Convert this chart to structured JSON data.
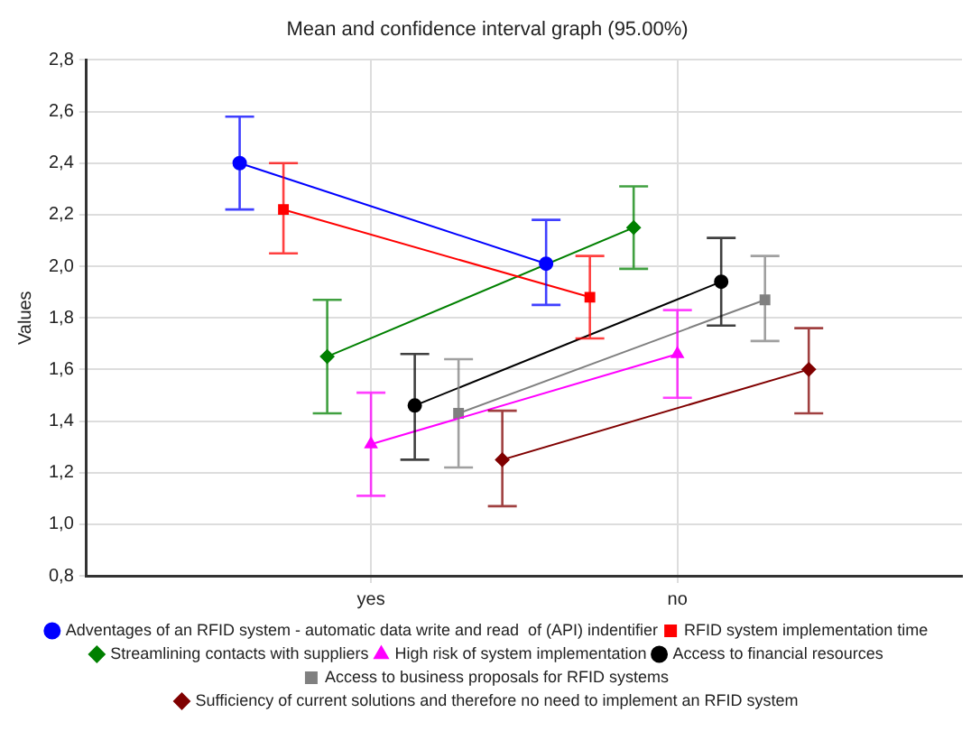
{
  "chart_data": {
    "type": "line",
    "title": "Mean and confidence interval graph (95.00%)",
    "ylabel": "Values",
    "categories": [
      null,
      null,
      null,
      null,
      null,
      null,
      "yes",
      null,
      null,
      null,
      null,
      null,
      null,
      "no",
      null,
      null,
      null,
      null,
      null,
      null
    ],
    "ylim": [
      0.8,
      2.8
    ],
    "yticks": [
      {
        "value": 0.8,
        "label": "0,8"
      },
      {
        "value": 1.0,
        "label": "1,0"
      },
      {
        "value": 1.2,
        "label": "1,2"
      },
      {
        "value": 1.4,
        "label": "1,4"
      },
      {
        "value": 1.6,
        "label": "1,6"
      },
      {
        "value": 1.8,
        "label": "1,8"
      },
      {
        "value": 2.0,
        "label": "2,0"
      },
      {
        "value": 2.2,
        "label": "2,2"
      },
      {
        "value": 2.4,
        "label": "2,4"
      },
      {
        "value": 2.6,
        "label": "2,6"
      },
      {
        "value": 2.8,
        "label": "2,8"
      }
    ],
    "grid": true,
    "legend": "bottom",
    "line_style": "solid",
    "series": [
      {
        "name": "Adventages of an RFID system - automatic data write and read  of (API) indentifier",
        "color": "#0000ff",
        "marker": "circle",
        "values": [
          null,
          null,
          null,
          2.4,
          null,
          null,
          null,
          null,
          null,
          null,
          2.01,
          null,
          null,
          null,
          null,
          null,
          null,
          null,
          null,
          null
        ],
        "errors": [
          null,
          null,
          null,
          [
            2.22,
            2.58
          ],
          null,
          null,
          null,
          null,
          null,
          null,
          [
            1.85,
            2.18
          ],
          null,
          null,
          null,
          null,
          null,
          null,
          null,
          null,
          null
        ]
      },
      {
        "name": "RFID system implementation time",
        "color": "#ff0000",
        "marker": "square",
        "values": [
          null,
          null,
          null,
          null,
          2.22,
          null,
          null,
          null,
          null,
          null,
          null,
          1.88,
          null,
          null,
          null,
          null,
          null,
          null,
          null,
          null
        ],
        "errors": [
          null,
          null,
          null,
          null,
          [
            2.05,
            2.4
          ],
          null,
          null,
          null,
          null,
          null,
          null,
          [
            1.72,
            2.04
          ],
          null,
          null,
          null,
          null,
          null,
          null,
          null,
          null
        ]
      },
      {
        "name": "Streamlining contacts with suppliers",
        "color": "#008000",
        "marker": "diamond",
        "values": [
          null,
          null,
          null,
          null,
          null,
          1.65,
          null,
          null,
          null,
          null,
          null,
          null,
          2.15,
          null,
          null,
          null,
          null,
          null,
          null,
          null
        ],
        "errors": [
          null,
          null,
          null,
          null,
          null,
          [
            1.43,
            1.87
          ],
          null,
          null,
          null,
          null,
          null,
          null,
          [
            1.99,
            2.31
          ],
          null,
          null,
          null,
          null,
          null,
          null,
          null
        ]
      },
      {
        "name": "High risk of system implementation",
        "color": "#ff00ff",
        "marker": "triangle",
        "values": [
          null,
          null,
          null,
          null,
          null,
          null,
          1.31,
          null,
          null,
          null,
          null,
          null,
          null,
          1.66,
          null,
          null,
          null,
          null,
          null,
          null
        ],
        "errors": [
          null,
          null,
          null,
          null,
          null,
          null,
          [
            1.11,
            1.51
          ],
          null,
          null,
          null,
          null,
          null,
          null,
          [
            1.49,
            1.83
          ],
          null,
          null,
          null,
          null,
          null,
          null
        ]
      },
      {
        "name": "Access to financial resources",
        "color": "#000000",
        "marker": "circle",
        "values": [
          null,
          null,
          null,
          null,
          null,
          null,
          null,
          1.46,
          null,
          null,
          null,
          null,
          null,
          null,
          1.94,
          null,
          null,
          null,
          null,
          null
        ],
        "errors": [
          null,
          null,
          null,
          null,
          null,
          null,
          null,
          [
            1.25,
            1.66
          ],
          null,
          null,
          null,
          null,
          null,
          null,
          [
            1.77,
            2.11
          ],
          null,
          null,
          null,
          null,
          null
        ]
      },
      {
        "name": "Access to business proposals for RFID systems",
        "color": "#808080",
        "marker": "square",
        "values": [
          null,
          null,
          null,
          null,
          null,
          null,
          null,
          null,
          1.43,
          null,
          null,
          null,
          null,
          null,
          null,
          1.87,
          null,
          null,
          null,
          null
        ],
        "errors": [
          null,
          null,
          null,
          null,
          null,
          null,
          null,
          null,
          [
            1.22,
            1.64
          ],
          null,
          null,
          null,
          null,
          null,
          null,
          [
            1.71,
            2.04
          ],
          null,
          null,
          null,
          null
        ]
      },
      {
        "name": "Sufficiency of current solutions and therefore no need to implement an RFID system",
        "color": "#800000",
        "marker": "diamond",
        "values": [
          null,
          null,
          null,
          null,
          null,
          null,
          null,
          null,
          null,
          1.25,
          null,
          null,
          null,
          null,
          null,
          null,
          1.6,
          null,
          null,
          null
        ],
        "errors": [
          null,
          null,
          null,
          null,
          null,
          null,
          null,
          null,
          null,
          [
            1.07,
            1.44
          ],
          null,
          null,
          null,
          null,
          null,
          null,
          [
            1.43,
            1.76
          ],
          null,
          null,
          null
        ]
      }
    ]
  }
}
